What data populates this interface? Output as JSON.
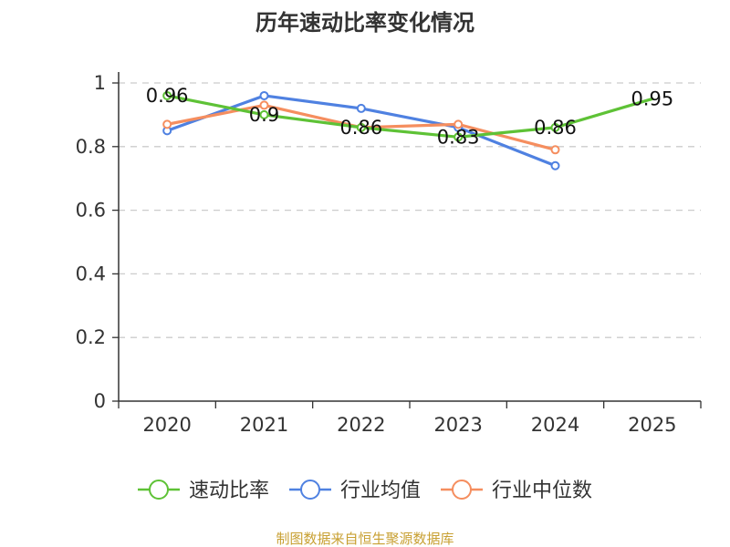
{
  "chart_data": {
    "type": "line",
    "title": "历年速动比率变化情况",
    "categories": [
      "2020",
      "2021",
      "2022",
      "2023",
      "2024",
      "2025"
    ],
    "ylim": [
      0,
      1
    ],
    "yticks": [
      "0",
      "0.2",
      "0.4",
      "0.6",
      "0.8",
      "1"
    ],
    "grid": true,
    "series": [
      {
        "name": "速动比率",
        "color": "#5ec236",
        "values": [
          0.96,
          0.9,
          0.86,
          0.83,
          0.86,
          0.95
        ],
        "labels": [
          "0.96",
          "0.9",
          "0.86",
          "0.83",
          "0.86",
          "0.95"
        ]
      },
      {
        "name": "行业均值",
        "color": "#4f81e1",
        "values": [
          0.85,
          0.96,
          0.92,
          0.86,
          0.74,
          null
        ]
      },
      {
        "name": "行业中位数",
        "color": "#f58e5f",
        "values": [
          0.87,
          0.93,
          0.86,
          0.87,
          0.79,
          null
        ]
      }
    ],
    "legend_position": "bottom",
    "source": "制图数据来自恒生聚源数据库"
  }
}
